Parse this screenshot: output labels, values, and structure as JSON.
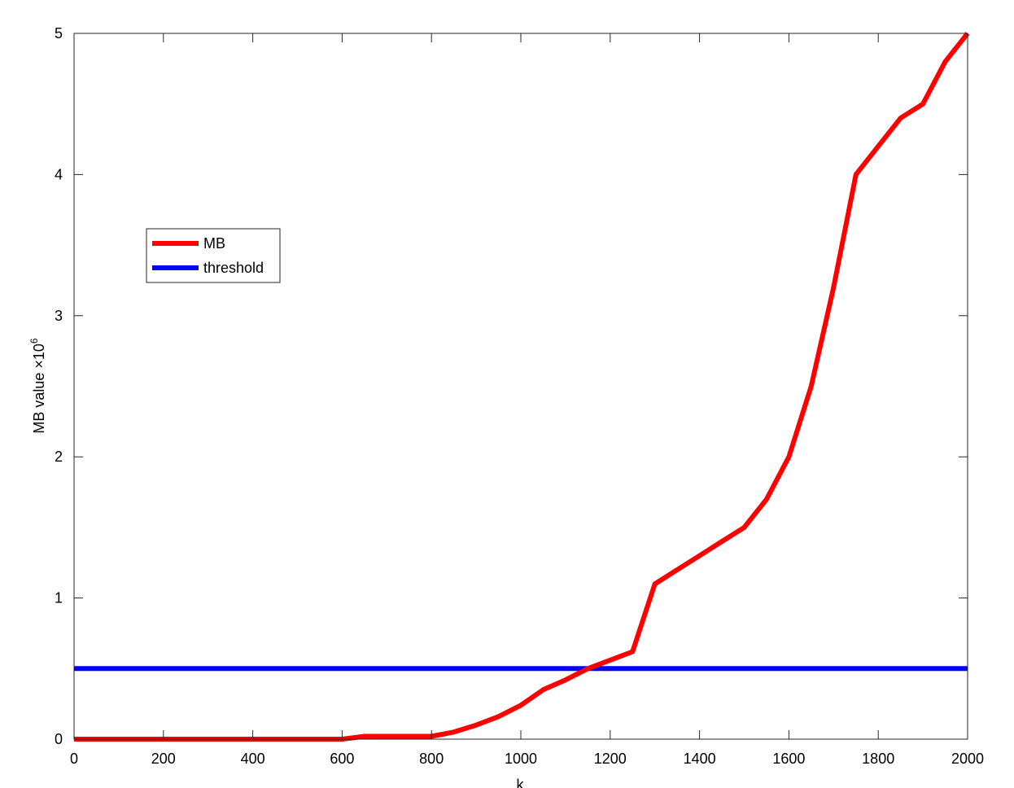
{
  "chart_data": {
    "type": "line",
    "xlabel": "k",
    "ylabel": "MB value ×10",
    "ylabel_exponent": "6",
    "xlim": [
      0,
      2000
    ],
    "ylim": [
      0,
      5
    ],
    "xticks": [
      0,
      200,
      400,
      600,
      800,
      1000,
      1200,
      1400,
      1600,
      1800,
      2000
    ],
    "yticks": [
      0,
      1,
      2,
      3,
      4,
      5
    ],
    "grid": false,
    "legend_position": "upper-left",
    "series": [
      {
        "name": "MB",
        "color": "#ff0000",
        "x": [
          0,
          50,
          100,
          150,
          200,
          250,
          300,
          350,
          400,
          450,
          500,
          550,
          600,
          650,
          700,
          750,
          800,
          850,
          900,
          950,
          1000,
          1050,
          1100,
          1150,
          1200,
          1250,
          1300,
          1350,
          1400,
          1450,
          1500,
          1550,
          1600,
          1650,
          1700,
          1750,
          1800,
          1850,
          1900,
          1950,
          2000
        ],
        "y": [
          0,
          0,
          0,
          0,
          0,
          0,
          0,
          0,
          0,
          0,
          0,
          0,
          0,
          0.02,
          0.02,
          0.02,
          0.02,
          0.05,
          0.1,
          0.16,
          0.24,
          0.35,
          0.42,
          0.5,
          0.56,
          0.62,
          1.1,
          1.2,
          1.3,
          1.4,
          1.5,
          1.7,
          2.0,
          2.5,
          3.2,
          4.0,
          4.2,
          4.4,
          4.5,
          4.8,
          5.0
        ]
      },
      {
        "name": "threshold",
        "color": "#0000ff",
        "x": [
          0,
          2000
        ],
        "y": [
          0.5,
          0.5
        ]
      }
    ]
  }
}
